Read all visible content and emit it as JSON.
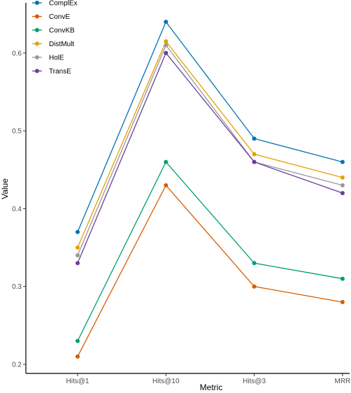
{
  "chart_data": {
    "type": "line",
    "xlabel": "Metric",
    "ylabel": "Value",
    "categories": [
      "Hits@1",
      "Hits@10",
      "Hits@3",
      "MRR"
    ],
    "ylim": [
      0.2,
      0.65
    ],
    "y_ticks": [
      0.2,
      0.3,
      0.4,
      0.5,
      0.6
    ],
    "y_tick_labels": [
      "0.2",
      "0.3",
      "0.4",
      "0.5",
      "0.6"
    ],
    "grid": false,
    "legend_position": "top-left",
    "series": [
      {
        "name": "ComplEx",
        "color": "#0072B2",
        "values": [
          0.37,
          0.64,
          0.49,
          0.46
        ]
      },
      {
        "name": "ConvE",
        "color": "#D55E00",
        "values": [
          0.21,
          0.43,
          0.3,
          0.28
        ]
      },
      {
        "name": "ConvKB",
        "color": "#009E73",
        "values": [
          0.23,
          0.46,
          0.33,
          0.31
        ]
      },
      {
        "name": "DistMult",
        "color": "#E69F00",
        "values": [
          0.35,
          0.615,
          0.47,
          0.44
        ]
      },
      {
        "name": "HolE",
        "color": "#999999",
        "values": [
          0.34,
          0.61,
          0.46,
          0.43
        ]
      },
      {
        "name": "TransE",
        "color": "#6A3D9A",
        "values": [
          0.33,
          0.6,
          0.46,
          0.42
        ]
      }
    ]
  }
}
